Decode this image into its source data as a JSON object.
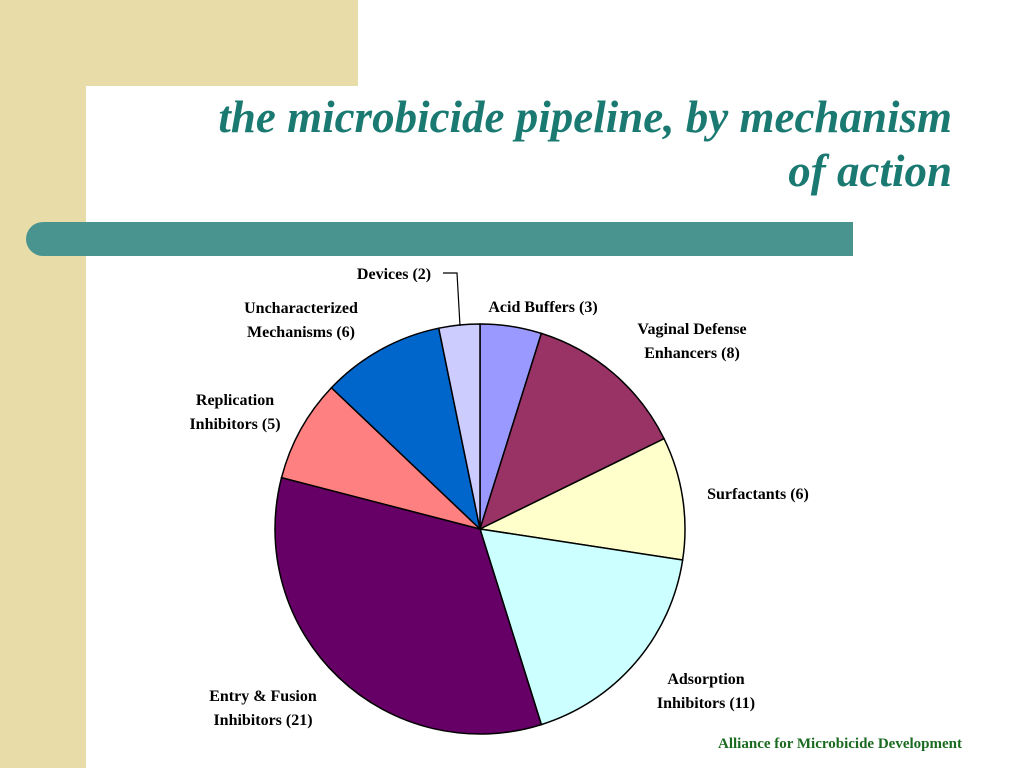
{
  "title": {
    "line1": "the microbicide pipeline, by mechanism",
    "line2": "of action"
  },
  "footer": "Alliance for Microbicide Development",
  "colors": {
    "title": "#1a7a72",
    "accent_bar": "#4a9490",
    "sidebar": "#e8dca8",
    "footer": "#1a6b20"
  },
  "chart_data": {
    "type": "pie",
    "slices": [
      {
        "name": "Acid Buffers",
        "value": 3,
        "label": "Acid Buffers (3)",
        "color": "#9999ff"
      },
      {
        "name": "Vaginal Defense Enhancers",
        "value": 8,
        "label": [
          "Vaginal Defense",
          "Enhancers (8)"
        ],
        "color": "#993366"
      },
      {
        "name": "Surfactants",
        "value": 6,
        "label": "Surfactants (6)",
        "color": "#ffffcc"
      },
      {
        "name": "Adsorption Inhibitors",
        "value": 11,
        "label": [
          "Adsorption",
          "Inhibitors (11)"
        ],
        "color": "#ccffff"
      },
      {
        "name": "Entry & Fusion Inhibitors",
        "value": 21,
        "label": [
          "Entry & Fusion",
          "Inhibitors (21)"
        ],
        "color": "#660066"
      },
      {
        "name": "Replication Inhibitors",
        "value": 5,
        "label": [
          "Replication",
          "Inhibitors (5)"
        ],
        "color": "#ff8080"
      },
      {
        "name": "Uncharacterized Mechanisms",
        "value": 6,
        "label": [
          "Uncharacterized",
          "Mechanisms (6)"
        ],
        "color": "#0066cc"
      },
      {
        "name": "Devices",
        "value": 2,
        "label": "Devices (2)",
        "color": "#ccccff"
      }
    ]
  }
}
